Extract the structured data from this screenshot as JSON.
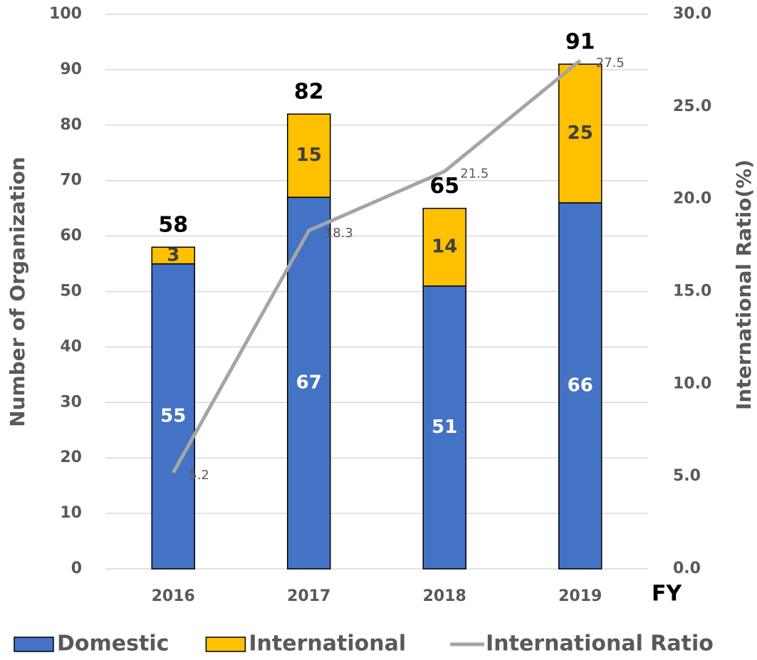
{
  "chart_data": {
    "type": "bar",
    "categories": [
      "2016",
      "2017",
      "2018",
      "2019"
    ],
    "x_label": "FY",
    "y_label": "Number of Organization",
    "y2_label": "International Ratio(%)",
    "series": [
      {
        "name": "Domestic",
        "color": "#4472c4",
        "values": [
          55,
          67,
          51,
          66
        ]
      },
      {
        "name": "International",
        "color": "#ffc000",
        "values": [
          3,
          15,
          14,
          25
        ]
      },
      {
        "name": "International Ratio",
        "color": "#a5a5a5",
        "type": "line",
        "axis": "y2",
        "values": [
          5.2,
          18.3,
          21.5,
          27.5
        ]
      }
    ],
    "totals": [
      58,
      82,
      65,
      91
    ],
    "stacked": true,
    "ylim": [
      0,
      100
    ],
    "yticks": [
      0,
      10,
      20,
      30,
      40,
      50,
      60,
      70,
      80,
      90,
      100
    ],
    "y2lim": [
      0,
      30
    ],
    "y2ticks": [
      {
        "value": 0,
        "label": "0.0"
      },
      {
        "value": 5,
        "label": "5.0"
      },
      {
        "value": 10,
        "label": "10.0"
      },
      {
        "value": 15,
        "label": "15.0"
      },
      {
        "value": 20,
        "label": "20.0"
      },
      {
        "value": 25,
        "label": "25.0"
      },
      {
        "value": 30,
        "label": "30.0"
      }
    ],
    "grid": true,
    "legend": "bottom"
  }
}
